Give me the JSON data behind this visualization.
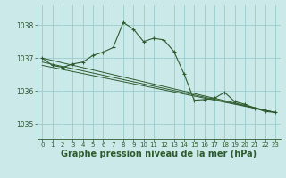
{
  "background_color": "#cce9e9",
  "grid_color": "#99cccc",
  "line_color": "#2d5a2d",
  "xlabel": "Graphe pression niveau de la mer (hPa)",
  "xlabel_fontsize": 7,
  "xtick_labels": [
    "0",
    "1",
    "2",
    "3",
    "4",
    "5",
    "6",
    "7",
    "8",
    "9",
    "10",
    "11",
    "12",
    "13",
    "14",
    "15",
    "16",
    "17",
    "18",
    "19",
    "20",
    "21",
    "22",
    "23"
  ],
  "ytick_labels": [
    "1035",
    "1036",
    "1037",
    "1038"
  ],
  "yticks": [
    1035,
    1036,
    1037,
    1038
  ],
  "ylim": [
    1034.55,
    1038.6
  ],
  "xlim": [
    -0.5,
    23.5
  ],
  "series1": [
    [
      0,
      1037.0
    ],
    [
      1,
      1036.78
    ],
    [
      2,
      1036.72
    ],
    [
      3,
      1036.82
    ],
    [
      4,
      1036.88
    ],
    [
      5,
      1037.08
    ],
    [
      6,
      1037.18
    ],
    [
      7,
      1037.32
    ],
    [
      8,
      1038.08
    ],
    [
      9,
      1037.88
    ],
    [
      10,
      1037.5
    ],
    [
      11,
      1037.6
    ],
    [
      12,
      1037.55
    ],
    [
      13,
      1037.2
    ],
    [
      14,
      1036.52
    ],
    [
      15,
      1035.72
    ],
    [
      16,
      1035.74
    ],
    [
      17,
      1035.78
    ],
    [
      18,
      1035.96
    ],
    [
      19,
      1035.68
    ],
    [
      20,
      1035.6
    ],
    [
      21,
      1035.48
    ],
    [
      22,
      1035.38
    ],
    [
      23,
      1035.35
    ]
  ],
  "line2": [
    [
      0,
      1037.0
    ],
    [
      23,
      1035.35
    ]
  ],
  "line3": [
    [
      0,
      1036.88
    ],
    [
      23,
      1035.35
    ]
  ],
  "line4": [
    [
      0,
      1036.78
    ],
    [
      23,
      1035.35
    ]
  ]
}
